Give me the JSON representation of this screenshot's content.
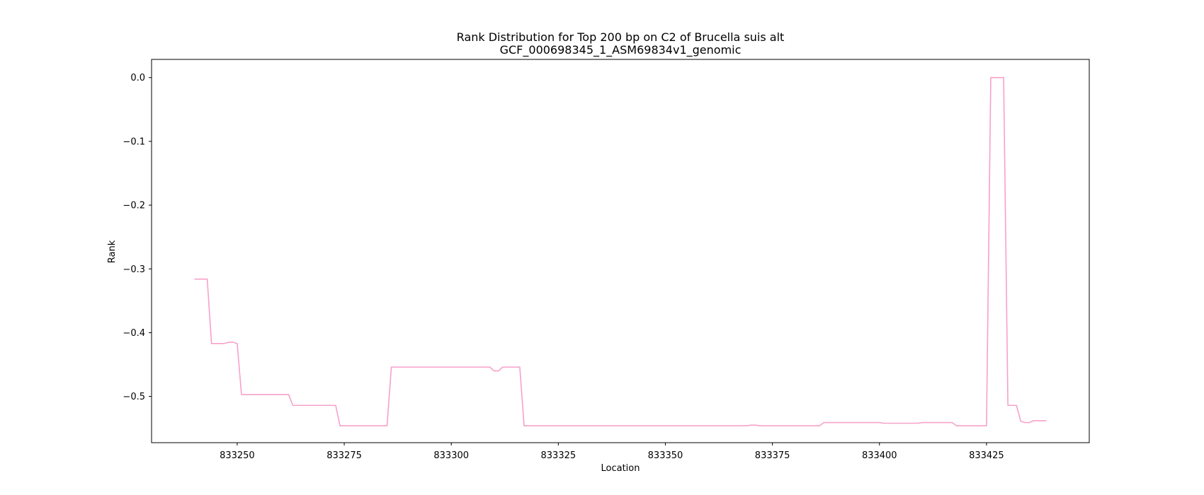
{
  "chart_data": {
    "type": "line",
    "title_line1": "Rank Distribution for Top 200 bp on C2 of Brucella suis alt",
    "title_line2": "GCF_000698345_1_ASM69834v1_genomic",
    "xlabel": "Location",
    "ylabel": "Rank",
    "xlim": [
      833230,
      833449
    ],
    "ylim": [
      -0.5725,
      0.0285
    ],
    "grid": false,
    "line_color": "#f7a1c9",
    "x_ticks": [
      {
        "value": 833250,
        "label": "833250"
      },
      {
        "value": 833275,
        "label": "833275"
      },
      {
        "value": 833300,
        "label": "833300"
      },
      {
        "value": 833325,
        "label": "833325"
      },
      {
        "value": 833350,
        "label": "833350"
      },
      {
        "value": 833375,
        "label": "833375"
      },
      {
        "value": 833400,
        "label": "833400"
      },
      {
        "value": 833425,
        "label": "833425"
      }
    ],
    "y_ticks": [
      {
        "value": 0.0,
        "label": "0.0"
      },
      {
        "value": -0.1,
        "label": "−0.1"
      },
      {
        "value": -0.2,
        "label": "−0.2"
      },
      {
        "value": -0.3,
        "label": "−0.3"
      },
      {
        "value": -0.4,
        "label": "−0.4"
      },
      {
        "value": -0.5,
        "label": "−0.5"
      }
    ],
    "series": [
      {
        "x": [
          833240,
          833243,
          833244,
          833247,
          833248,
          833249,
          833250,
          833251,
          833262,
          833263,
          833273,
          833274,
          833285,
          833286,
          833309,
          833310,
          833311,
          833312,
          833316,
          833317,
          833369,
          833370,
          833371,
          833372,
          833386,
          833387,
          833400,
          833401,
          833409,
          833410,
          833417,
          833418,
          833425,
          833426,
          833429,
          833430,
          833432,
          833433,
          833434,
          833435,
          833436,
          833439
        ],
        "y": [
          -0.316,
          -0.316,
          -0.417,
          -0.417,
          -0.415,
          -0.415,
          -0.417,
          -0.497,
          -0.497,
          -0.514,
          -0.514,
          -0.546,
          -0.546,
          -0.454,
          -0.454,
          -0.46,
          -0.46,
          -0.454,
          -0.454,
          -0.546,
          -0.546,
          -0.545,
          -0.545,
          -0.546,
          -0.546,
          -0.541,
          -0.541,
          -0.542,
          -0.542,
          -0.541,
          -0.541,
          -0.546,
          -0.546,
          0.0,
          0.0,
          -0.514,
          -0.514,
          -0.539,
          -0.541,
          -0.541,
          -0.538,
          -0.538
        ]
      }
    ]
  }
}
